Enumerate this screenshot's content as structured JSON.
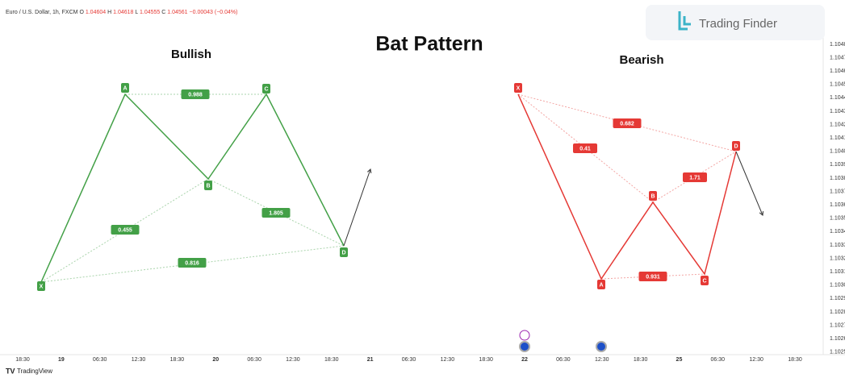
{
  "header": {
    "symbol": "Euro / U.S. Dollar, 1h, FXCM",
    "ohlc": [
      {
        "key": "O",
        "value": "1.04604"
      },
      {
        "key": "H",
        "value": "1.04618"
      },
      {
        "key": "L",
        "value": "1.04555"
      },
      {
        "key": "C",
        "value": "1.04561"
      }
    ],
    "change": "−0.00043 (−0.04%)"
  },
  "title": "Bat Pattern",
  "logo": "Trading Finder",
  "patterns": [
    {
      "label": "Bullish",
      "points": [
        "X",
        "A",
        "B",
        "C",
        "D"
      ],
      "ratios": [
        "0.988",
        "0.455",
        "1.805",
        "0.816"
      ]
    },
    {
      "label": "Bearish",
      "points": [
        "X",
        "A",
        "B",
        "C",
        "D"
      ],
      "ratios": [
        "0.682",
        "0.41",
        "1.71",
        "0.931"
      ]
    }
  ],
  "price_axis": [
    "1.1048",
    "1.1047",
    "1.1046",
    "1.1045",
    "1.1044",
    "1.1043",
    "1.1042",
    "1.1041",
    "1.1040",
    "1.1039",
    "1.1038",
    "1.1037",
    "1.1036",
    "1.1035",
    "1.1034",
    "1.1033",
    "1.1032",
    "1.1031",
    "1.1030",
    "1.1029",
    "1.1028",
    "1.1027",
    "1.1026",
    "1.1025"
  ],
  "time_axis": [
    "18:30",
    "19",
    "06:30",
    "12:30",
    "18:30",
    "20",
    "06:30",
    "12:30",
    "18:30",
    "21",
    "06:30",
    "12:30",
    "18:30",
    "22",
    "06:30",
    "12:30",
    "18:30",
    "25",
    "06:30",
    "12:30",
    "18:30"
  ],
  "footer": "TradingView"
}
